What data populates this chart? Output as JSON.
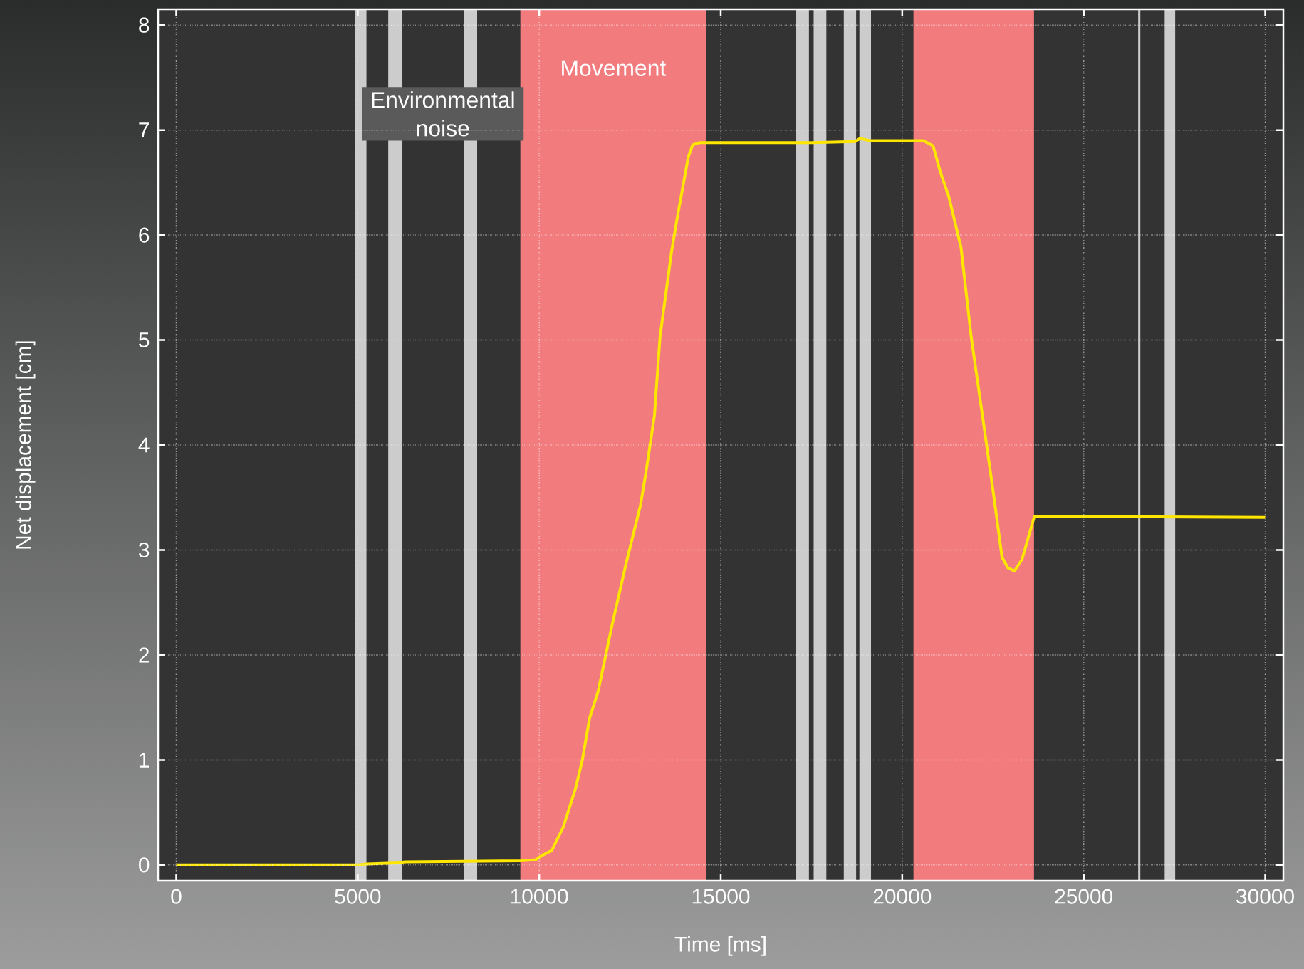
{
  "chart_data": {
    "type": "line",
    "xlabel": "Time [ms]",
    "ylabel": "Net displacement [cm]",
    "xlim": [
      -500,
      30500
    ],
    "ylim": [
      -0.15,
      8.15
    ],
    "xticks": [
      0,
      5000,
      10000,
      15000,
      20000,
      25000,
      30000
    ],
    "yticks": [
      0,
      1,
      2,
      3,
      4,
      5,
      6,
      7,
      8
    ],
    "grid": true,
    "line_style": "solid",
    "marker": "none",
    "bands": [
      {
        "axis": "x",
        "from": 4920,
        "to": 5240,
        "color": "#cccccc"
      },
      {
        "axis": "x",
        "from": 5840,
        "to": 6230,
        "color": "#cccccc"
      },
      {
        "axis": "x",
        "from": 7920,
        "to": 8290,
        "color": "#cccccc"
      },
      {
        "axis": "x",
        "from": 9480,
        "to": 14590,
        "color": "#f27b7e",
        "label": "Movement"
      },
      {
        "axis": "x",
        "from": 17080,
        "to": 17430,
        "color": "#cccccc"
      },
      {
        "axis": "x",
        "from": 17560,
        "to": 17910,
        "color": "#cccccc"
      },
      {
        "axis": "x",
        "from": 18390,
        "to": 18730,
        "color": "#cccccc"
      },
      {
        "axis": "x",
        "from": 18820,
        "to": 19140,
        "color": "#cccccc"
      },
      {
        "axis": "x",
        "from": 20310,
        "to": 23630,
        "color": "#f27b7e"
      },
      {
        "axis": "x",
        "from": 26500,
        "to": 26560,
        "color": "#cccccc"
      },
      {
        "axis": "x",
        "from": 27230,
        "to": 27520,
        "color": "#cccccc"
      }
    ],
    "annotations": [
      "Environmental noise"
    ],
    "series": [
      {
        "color": "#ffe600",
        "x": [
          0,
          5000,
          5240,
          6100,
          6300,
          9500,
          9900,
          10071,
          10349,
          10660,
          11002,
          11188,
          11388,
          11620,
          12010,
          12398,
          12785,
          12941,
          13173,
          13327,
          13640,
          13794,
          14104,
          14227,
          14414,
          17520,
          18700,
          18835,
          19100,
          20580,
          20850,
          21050,
          21280,
          21620,
          21900,
          22210,
          22520,
          22750,
          22910,
          23090,
          23300,
          23640,
          30000
        ],
        "values": [
          0,
          0,
          0.01,
          0.02,
          0.03,
          0.04,
          0.05,
          0.09,
          0.14,
          0.36,
          0.73,
          1.0,
          1.4,
          1.65,
          2.29,
          2.88,
          3.42,
          3.74,
          4.28,
          5.03,
          5.83,
          6.15,
          6.74,
          6.86,
          6.88,
          6.88,
          6.89,
          6.92,
          6.9,
          6.9,
          6.85,
          6.6,
          6.37,
          5.88,
          5.03,
          4.28,
          3.52,
          2.93,
          2.83,
          2.8,
          2.91,
          3.32,
          3.31
        ]
      }
    ]
  }
}
